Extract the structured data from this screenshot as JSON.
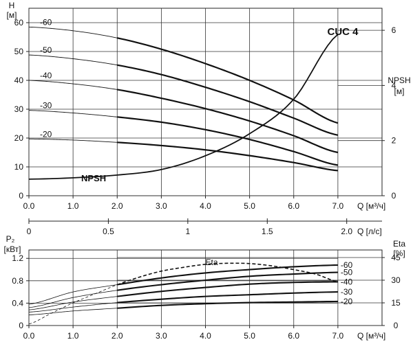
{
  "chart_data": [
    {
      "type": "line",
      "panel": "head",
      "title": "CUC 4",
      "xlabel": "Q [м³/ч]",
      "x_ticks": [
        "0.0",
        "1.0",
        "2.0",
        "3.0",
        "4.0",
        "5.0",
        "6.0",
        "7.0"
      ],
      "xlim": [
        0,
        8
      ],
      "ylabel_line1": "H",
      "ylabel_line2": "[м]",
      "y_ticks": [
        "0",
        "10",
        "20",
        "30",
        "40",
        "50",
        "60"
      ],
      "ylim": [
        0,
        65
      ],
      "y2label_line1": "NPSH",
      "y2label_line2": "[м]",
      "y2_ticks": [
        "0",
        "2",
        "4",
        "6"
      ],
      "y2lim": [
        0,
        6.8
      ],
      "series": [
        {
          "name": "-60",
          "label": "-60",
          "x": [
            0,
            1,
            2,
            3,
            4,
            5,
            6,
            7
          ],
          "y": [
            58.5,
            57.2,
            54.7,
            50.8,
            45.8,
            40.0,
            33.2,
            25.2
          ]
        },
        {
          "name": "-50",
          "label": "-50",
          "x": [
            0,
            1,
            2,
            3,
            4,
            5,
            6,
            7
          ],
          "y": [
            48.8,
            47.5,
            45.3,
            42.0,
            37.6,
            32.6,
            26.9,
            21.0
          ]
        },
        {
          "name": "-40",
          "label": "-40",
          "x": [
            0,
            1,
            2,
            3,
            4,
            5,
            6,
            7
          ],
          "y": [
            40.0,
            38.8,
            36.8,
            33.8,
            30.2,
            25.9,
            20.8,
            15.0
          ]
        },
        {
          "name": "-30",
          "label": "-30",
          "x": [
            0,
            1,
            2,
            3,
            4,
            5,
            6,
            7
          ],
          "y": [
            29.6,
            28.7,
            27.3,
            25.5,
            22.9,
            19.5,
            15.3,
            10.6
          ]
        },
        {
          "name": "-20",
          "label": "-20",
          "x": [
            0,
            1,
            2,
            3,
            4,
            5,
            6,
            7
          ],
          "y": [
            19.7,
            19.3,
            18.5,
            17.4,
            15.9,
            13.9,
            11.5,
            8.7
          ]
        },
        {
          "name": "NPSH",
          "label": "NPSH",
          "axis": "right",
          "x": [
            0,
            1,
            2,
            3,
            4,
            5,
            6,
            7
          ],
          "y": [
            0.6,
            0.65,
            0.75,
            0.95,
            1.45,
            2.25,
            3.5,
            5.85
          ]
        }
      ],
      "thin_from_x": 2.0
    },
    {
      "type": "axis",
      "panel": "flow-ls",
      "xlabel": "Q [л/с]",
      "x_ticks": [
        "0",
        "0.5",
        "1",
        "1.5",
        "2.0"
      ],
      "x_values": [
        0,
        0.5,
        1.0,
        1.5,
        2.0
      ],
      "q_m3h_per_ls": 3.6
    },
    {
      "type": "line",
      "panel": "power",
      "xlabel": "Q [м³/ч]",
      "x_ticks": [
        "0.0",
        "1.0",
        "2.0",
        "3.0",
        "4.0",
        "5.0",
        "6.0",
        "7.0"
      ],
      "xlim": [
        0,
        8
      ],
      "ylabel_line1": "P₂",
      "ylabel_line2": "[кВт]",
      "y_ticks": [
        "0",
        "0.4",
        "0.8",
        "1.2"
      ],
      "ylim": [
        0,
        1.35
      ],
      "y2label_line1": "Eta",
      "y2label_line2": "[%]",
      "y2_ticks": [
        "0",
        "15",
        "30",
        "45"
      ],
      "y2lim": [
        0,
        50
      ],
      "series": [
        {
          "name": "-60",
          "label": "-60",
          "x": [
            0,
            1,
            2,
            3,
            4,
            5,
            6,
            7
          ],
          "y": [
            0.38,
            0.6,
            0.73,
            0.85,
            0.94,
            1.0,
            1.05,
            1.08
          ]
        },
        {
          "name": "-50",
          "label": "-50",
          "x": [
            0,
            1,
            2,
            3,
            4,
            5,
            6,
            7
          ],
          "y": [
            0.32,
            0.5,
            0.63,
            0.73,
            0.81,
            0.88,
            0.92,
            0.95
          ]
        },
        {
          "name": "-40",
          "label": "-40",
          "x": [
            0,
            1,
            2,
            3,
            4,
            5,
            6,
            7
          ],
          "y": [
            0.28,
            0.42,
            0.52,
            0.61,
            0.68,
            0.74,
            0.77,
            0.78
          ]
        },
        {
          "name": "-30",
          "label": "-30",
          "x": [
            0,
            1,
            2,
            3,
            4,
            5,
            6,
            7
          ],
          "y": [
            0.24,
            0.33,
            0.41,
            0.47,
            0.52,
            0.55,
            0.58,
            0.6
          ]
        },
        {
          "name": "-20",
          "label": "-20",
          "x": [
            0,
            1,
            2,
            3,
            4,
            5,
            6,
            7
          ],
          "y": [
            0.19,
            0.26,
            0.31,
            0.36,
            0.39,
            0.41,
            0.42,
            0.43
          ]
        },
        {
          "name": "Eta",
          "label": "Eta",
          "axis": "right",
          "dashed": true,
          "x": [
            0,
            0.5,
            1,
            1.5,
            2,
            2.5,
            3,
            3.5,
            4,
            4.5,
            5,
            5.5,
            6,
            6.5,
            7
          ],
          "y": [
            1,
            8,
            15,
            21,
            27,
            32,
            36,
            38.5,
            40.5,
            41.2,
            41,
            39.5,
            37,
            34,
            29
          ]
        }
      ],
      "thin_from_x": 2.0
    }
  ]
}
